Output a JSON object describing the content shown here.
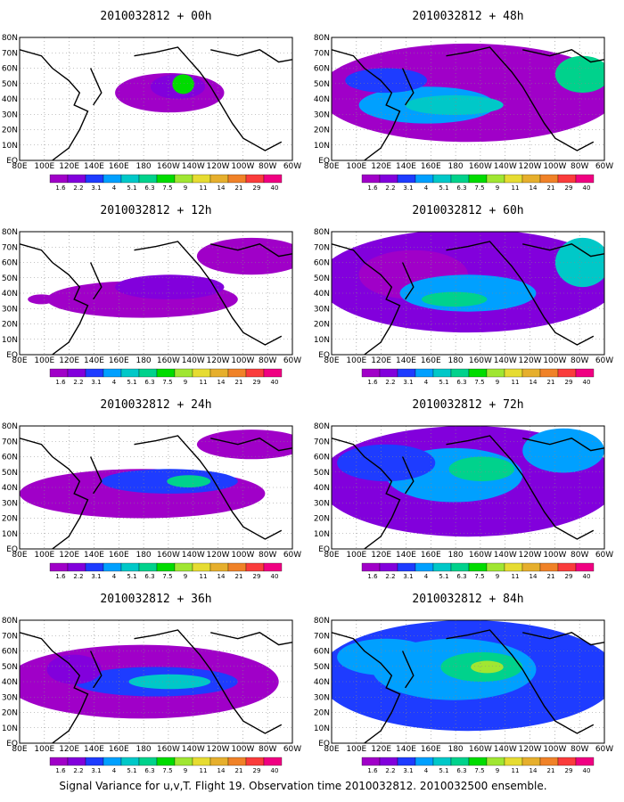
{
  "colorbar": {
    "labels": [
      "1.6",
      "2.2",
      "3.1",
      "4",
      "5.1",
      "6.3",
      "7.5",
      "9",
      "11",
      "14",
      "21",
      "29",
      "40"
    ],
    "colors": [
      "#a000c8",
      "#8200dc",
      "#1e3cff",
      "#00a0ff",
      "#00c8c8",
      "#00d28c",
      "#00dc00",
      "#a0e632",
      "#e6dc32",
      "#e6af2d",
      "#f08228",
      "#fa3c3c",
      "#f00082"
    ]
  },
  "axes": {
    "x_ticks": [
      "80E",
      "100E",
      "120E",
      "140E",
      "160E",
      "180",
      "160W",
      "140W",
      "120W",
      "100W",
      "80W",
      "60W"
    ],
    "y_ticks": [
      "EQ",
      "10N",
      "20N",
      "30N",
      "40N",
      "50N",
      "60N",
      "70N",
      "80N"
    ]
  },
  "panels": [
    {
      "title": "2010032812 + 00h"
    },
    {
      "title": "2010032812 + 48h"
    },
    {
      "title": "2010032812 + 12h"
    },
    {
      "title": "2010032812 + 60h"
    },
    {
      "title": "2010032812 + 24h"
    },
    {
      "title": "2010032812 + 72h"
    },
    {
      "title": "2010032812 + 36h"
    },
    {
      "title": "2010032812 + 84h"
    }
  ],
  "caption": "Signal Variance for u,v,T. Flight 19. Observation time 2010032812. 2010032500 ensemble."
}
